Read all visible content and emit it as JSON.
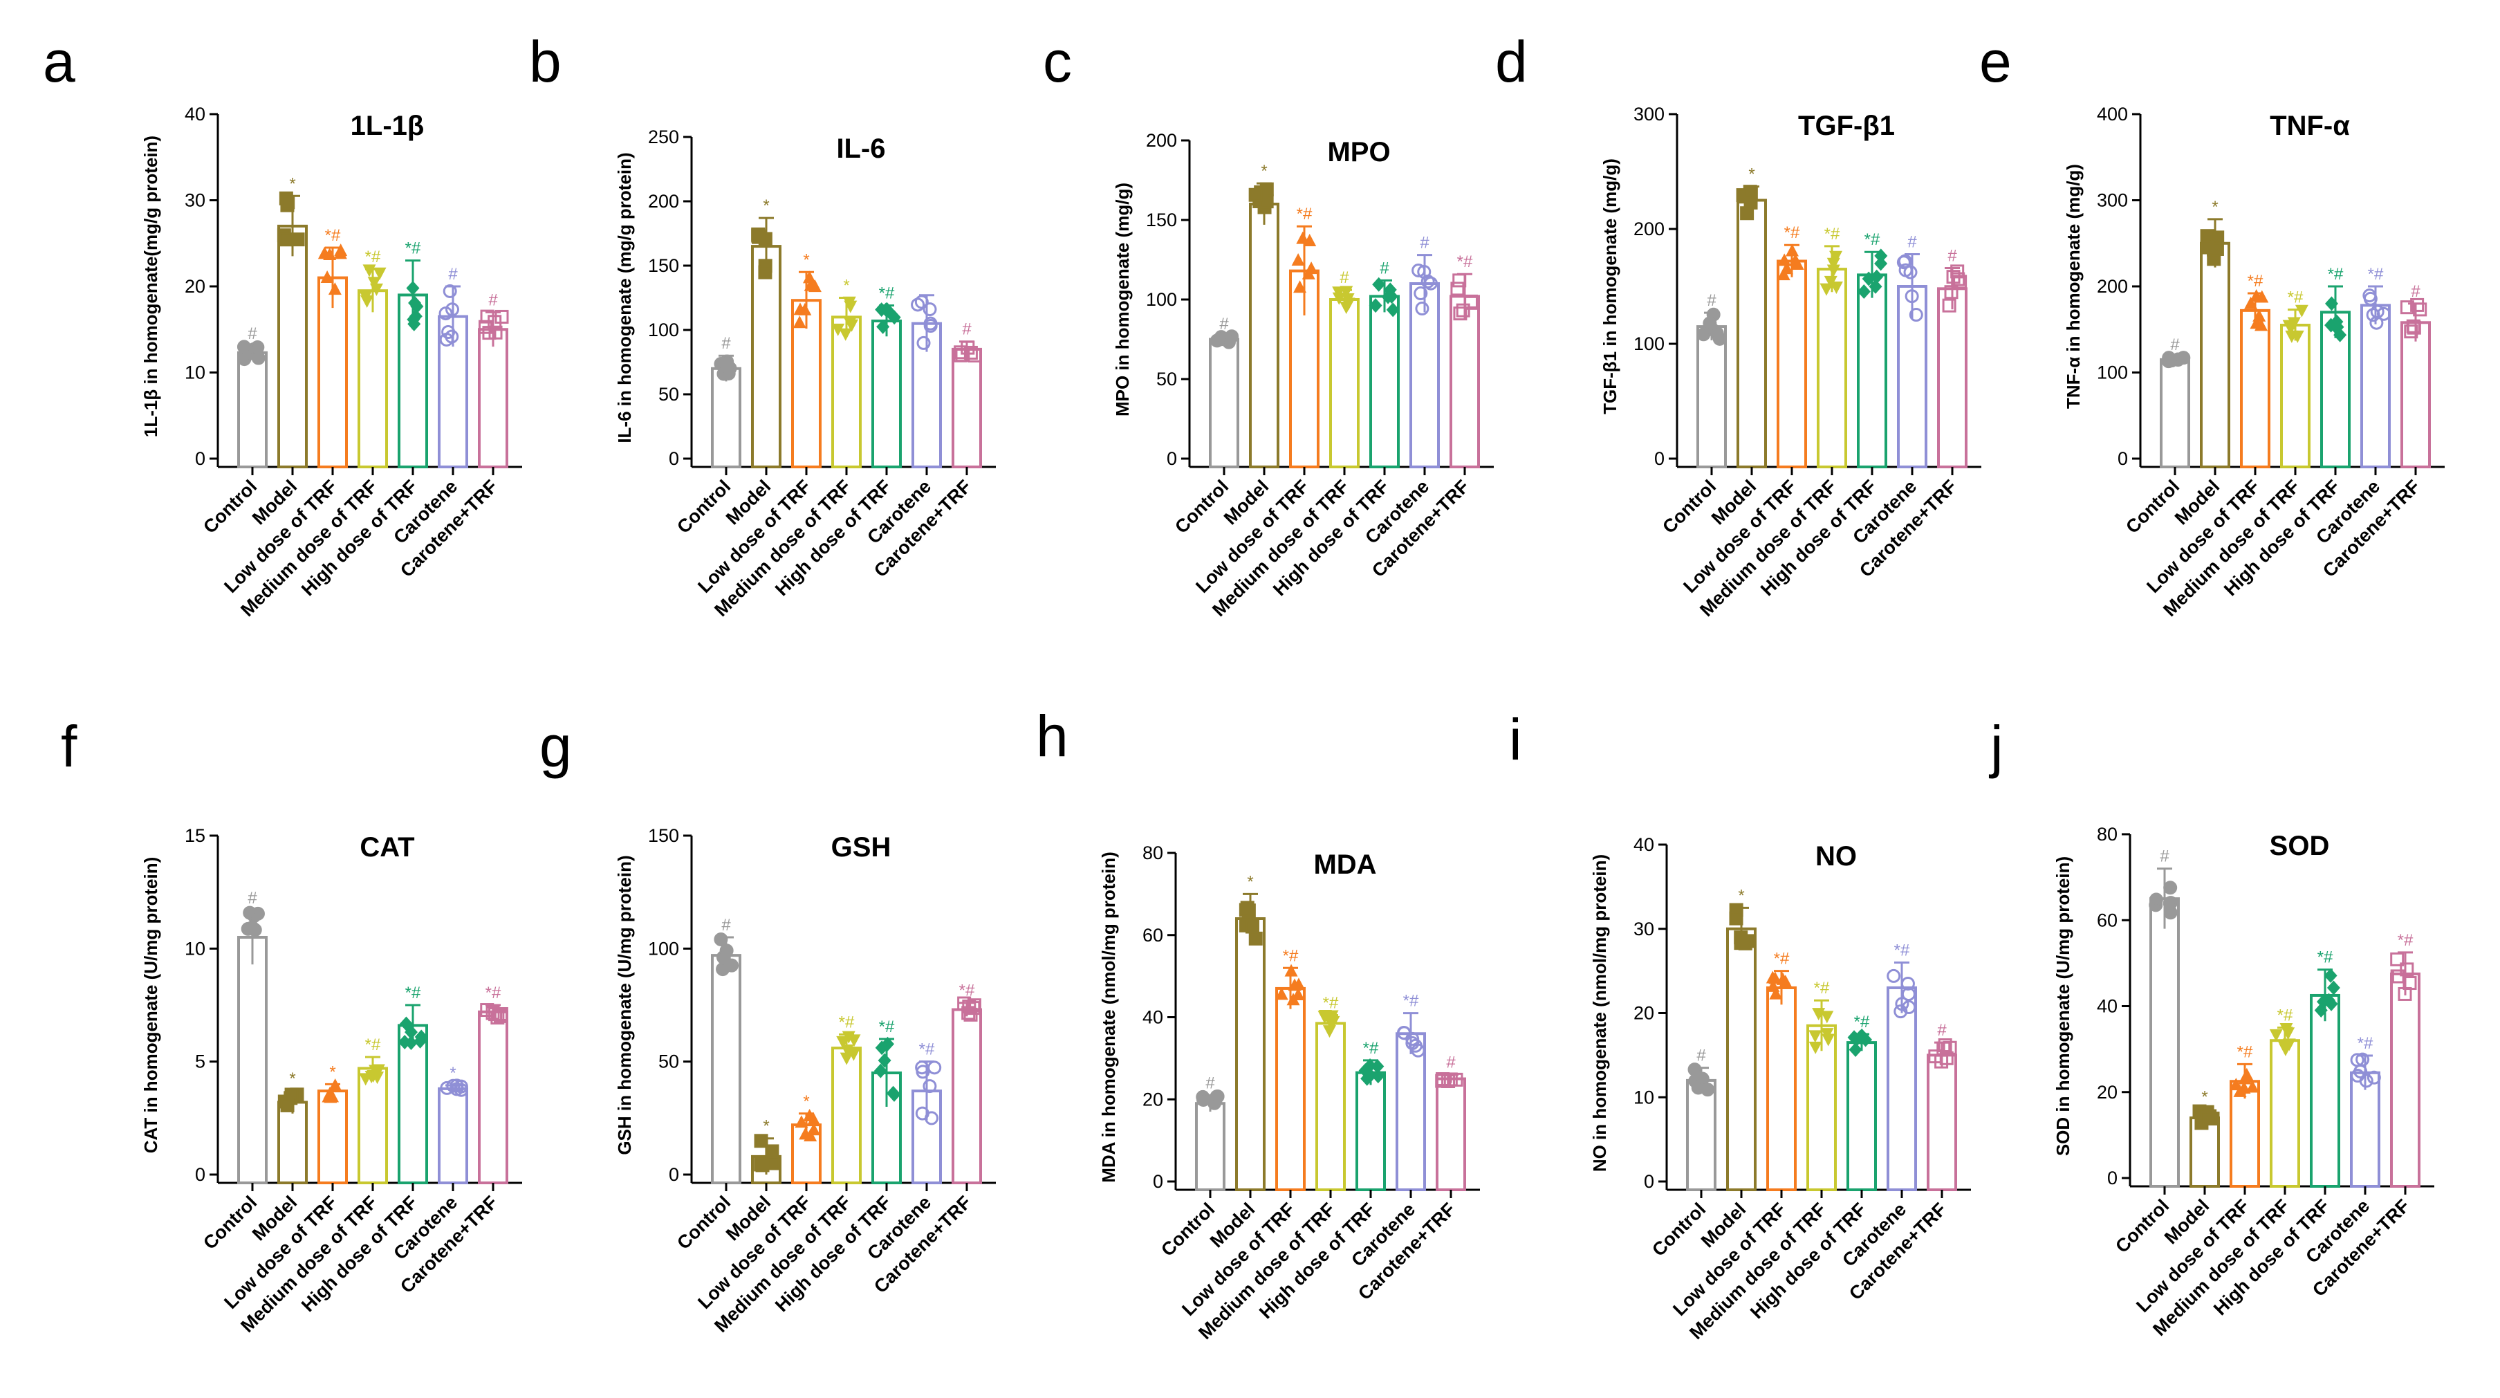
{
  "figure": {
    "categories": [
      "Control",
      "Model",
      "Low dose of TRF",
      "Medium dose of TRF",
      "High dose of TRF",
      "Carotene",
      "Carotene+TRF"
    ],
    "colors": [
      "#999999",
      "#8c7a2b",
      "#f57c1f",
      "#c8c830",
      "#1aa36e",
      "#8f8fd6",
      "#c8719a"
    ],
    "axis_color": "#000000"
  },
  "chart_data": [
    {
      "id": "a",
      "letter": "a",
      "type": "bar",
      "title": "1L-1β",
      "ylabel": "1L-1β in homogenate(mg/g protein)",
      "ylim": [
        0,
        40
      ],
      "yticks": [
        0,
        10,
        20,
        30,
        40
      ],
      "values": [
        12.3,
        27,
        21,
        19.5,
        19,
        16.5,
        15
      ],
      "errors": [
        0.8,
        3.5,
        3.5,
        2.5,
        4,
        3.5,
        2
      ],
      "sig": [
        "#",
        "*",
        "*#",
        "*#",
        "*#",
        "#",
        "#"
      ]
    },
    {
      "id": "b",
      "letter": "b",
      "type": "bar",
      "title": "IL-6",
      "ylabel": "IL-6 in homogenate (mg/g protein)",
      "ylim": [
        0,
        250
      ],
      "yticks": [
        0,
        50,
        100,
        150,
        200,
        250
      ],
      "values": [
        70,
        165,
        123,
        110,
        107,
        105,
        85
      ],
      "errors": [
        10,
        22,
        22,
        15,
        12,
        22,
        6
      ],
      "sig": [
        "#",
        "*",
        "*",
        "*",
        "*#",
        "",
        "#"
      ]
    },
    {
      "id": "c",
      "letter": "c",
      "type": "bar",
      "title": "MPO",
      "ylabel": "MPO in homogenate (mg/g)",
      "ylim": [
        0,
        200
      ],
      "yticks": [
        0,
        50,
        100,
        150,
        200
      ],
      "values": [
        75,
        160,
        118,
        100,
        102,
        110,
        102
      ],
      "errors": [
        2,
        13,
        28,
        6,
        10,
        18,
        14
      ],
      "sig": [
        "#",
        "*",
        "*#",
        "#",
        "#",
        "#",
        "*#"
      ]
    },
    {
      "id": "d",
      "letter": "d",
      "type": "bar",
      "title": "TGF-β1",
      "ylabel": "TGF-β1 in homogenate (mg/g)",
      "ylim": [
        0,
        300
      ],
      "yticks": [
        0,
        100,
        200,
        300
      ],
      "values": [
        115,
        225,
        172,
        165,
        160,
        150,
        148
      ],
      "errors": [
        12,
        12,
        14,
        20,
        20,
        28,
        18
      ],
      "sig": [
        "#",
        "*",
        "*#",
        "*#",
        "*#",
        "#",
        "#"
      ]
    },
    {
      "id": "e",
      "letter": "e",
      "type": "bar",
      "title": "TNF-α",
      "ylabel": "TNF-α in homogenate (mg/g)",
      "ylim": [
        0,
        400
      ],
      "yticks": [
        0,
        100,
        200,
        300,
        400
      ],
      "values": [
        115,
        250,
        172,
        155,
        170,
        178,
        158
      ],
      "errors": [
        3,
        28,
        20,
        18,
        30,
        22,
        22
      ],
      "sig": [
        "#",
        "*",
        "*#",
        "*#",
        "*#",
        "*#",
        "#"
      ]
    },
    {
      "id": "f",
      "letter": "f",
      "type": "bar",
      "title": "CAT",
      "ylabel": "CAT in homogenate (U/mg protein)",
      "ylim": [
        0,
        15
      ],
      "yticks": [
        0,
        5,
        10,
        15
      ],
      "values": [
        10.5,
        3.2,
        3.7,
        4.7,
        6.6,
        3.8,
        7.2
      ],
      "errors": [
        1.2,
        0.5,
        0.3,
        0.5,
        0.9,
        0.15,
        0.3
      ],
      "sig": [
        "#",
        "*",
        "*",
        "*#",
        "*#",
        "*",
        "*#"
      ]
    },
    {
      "id": "g",
      "letter": "g",
      "type": "bar",
      "title": "GSH",
      "ylabel": "GSH in homogenate (U/mg protein)",
      "ylim": [
        0,
        150
      ],
      "yticks": [
        0,
        50,
        100,
        150
      ],
      "values": [
        97,
        8,
        22,
        56,
        45,
        37,
        73
      ],
      "errors": [
        8,
        8,
        5,
        6,
        15,
        13,
        3
      ],
      "sig": [
        "#",
        "*",
        "*",
        "*#",
        "*#",
        "*#",
        "*#"
      ]
    },
    {
      "id": "h",
      "letter": "h",
      "type": "bar",
      "title": "MDA",
      "ylabel": "MDA in homogenate (nmol/mg protein)",
      "ylim": [
        0,
        80
      ],
      "yticks": [
        0,
        20,
        40,
        60,
        80
      ],
      "values": [
        19,
        64,
        47,
        38.5,
        26.5,
        36,
        25
      ],
      "errors": [
        2,
        6,
        5,
        2,
        3,
        5,
        1
      ],
      "sig": [
        "#",
        "*",
        "*#",
        "*#",
        "*#",
        "*#",
        "#"
      ]
    },
    {
      "id": "i",
      "letter": "i",
      "type": "bar",
      "title": "NO",
      "ylabel": "NO in homogenate (nmol/mg protein)",
      "ylim": [
        0,
        40
      ],
      "yticks": [
        0,
        10,
        20,
        30,
        40
      ],
      "values": [
        12,
        30,
        23,
        18.5,
        16.5,
        23,
        15
      ],
      "errors": [
        1.5,
        2.5,
        2,
        3,
        1,
        3,
        1.5
      ],
      "sig": [
        "#",
        "*",
        "*#",
        "*#",
        "*#",
        "*#",
        "#"
      ]
    },
    {
      "id": "j",
      "letter": "j",
      "type": "bar",
      "title": "SOD",
      "ylabel": "SOD in homogenate (U/mg protein)",
      "ylim": [
        0,
        80
      ],
      "yticks": [
        0,
        20,
        40,
        60,
        80
      ],
      "values": [
        65,
        14,
        22.5,
        32,
        42.5,
        24.5,
        47.5
      ],
      "errors": [
        7,
        2,
        4,
        3,
        6,
        4,
        5
      ],
      "sig": [
        "#",
        "*",
        "*#",
        "*#",
        "*#",
        "*#",
        "*#"
      ]
    }
  ]
}
